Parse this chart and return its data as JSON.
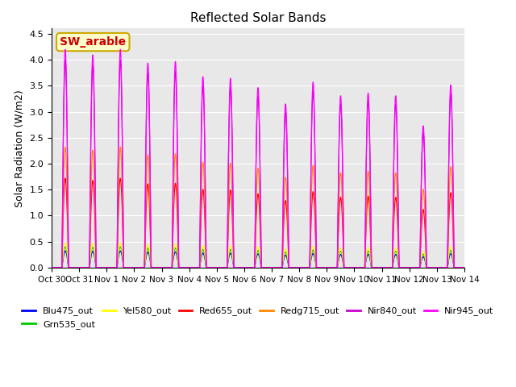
{
  "title": "Reflected Solar Bands",
  "ylabel": "Solar Radiation (W/m2)",
  "xlabel": "",
  "annotation": "SW_arable",
  "annotation_color": "#cc0000",
  "annotation_bg": "#ffffcc",
  "annotation_border": "#ccaa00",
  "ylim": [
    0,
    4.6
  ],
  "yticks": [
    0.0,
    0.5,
    1.0,
    1.5,
    2.0,
    2.5,
    3.0,
    3.5,
    4.0,
    4.5
  ],
  "plot_bg": "#e8e8e8",
  "grid_color": "white",
  "series_colors": {
    "Blu475_out": "#0000ff",
    "Grn535_out": "#00cc00",
    "Yel580_out": "#ffff00",
    "Red655_out": "#ff0000",
    "Redg715_out": "#ff8800",
    "Nir840_out": "#cc00cc",
    "Nir945_out": "#ff00ff"
  },
  "series_order": [
    "Blu475_out",
    "Grn535_out",
    "Yel580_out",
    "Red655_out",
    "Redg715_out",
    "Nir840_out",
    "Nir945_out"
  ],
  "peak_scales": {
    "Blu475_out": 0.08,
    "Grn535_out": 0.1,
    "Yel580_out": 0.12,
    "Red655_out": 0.43,
    "Redg715_out": 0.58,
    "Nir840_out": 1.0,
    "Nir945_out": 1.05
  },
  "day_peaks": [
    4.0,
    3.9,
    4.0,
    3.75,
    3.78,
    3.5,
    3.47,
    3.3,
    3.0,
    3.4,
    3.15,
    3.2,
    3.15,
    2.6,
    3.35
  ],
  "num_days": 15,
  "points_per_day": 144,
  "tick_labels": [
    "Oct 30",
    "Oct 31",
    "Nov 1",
    "Nov 2",
    "Nov 3",
    "Nov 4",
    "Nov 5",
    "Nov 6",
    "Nov 7",
    "Nov 8",
    "Nov 9",
    "Nov 10",
    "Nov 11",
    "Nov 12",
    "Nov 13",
    "Nov 14"
  ]
}
